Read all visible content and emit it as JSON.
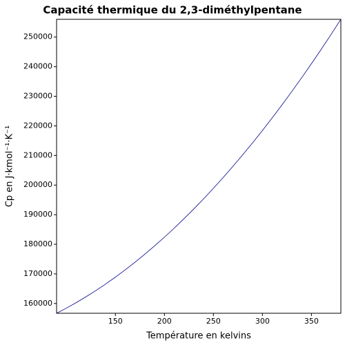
{
  "chart_data": {
    "type": "line",
    "title": "Capacité thermique du 2,3-diméthylpentane",
    "x_label": "Température en kelvins",
    "y_label": "Cp en J·kmol⁻¹·K⁻¹",
    "x": [
      90,
      100,
      110,
      120,
      130,
      140,
      150,
      160,
      170,
      180,
      190,
      200,
      210,
      220,
      230,
      240,
      250,
      260,
      270,
      280,
      290,
      300,
      310,
      320,
      330,
      340,
      350,
      360,
      370,
      380
    ],
    "series": [
      {
        "name": "Cp",
        "color": "#00008b",
        "values": [
          156702,
          158434,
          160287,
          162260,
          164355,
          166570,
          168906,
          171363,
          173941,
          176640,
          179459,
          182400,
          185461,
          188644,
          191947,
          195371,
          198916,
          202582,
          206369,
          210276,
          214305,
          218454,
          222724,
          227115,
          231627,
          236260,
          241014,
          245889,
          250884,
          256000
        ]
      }
    ],
    "xlim": [
      90,
      380
    ],
    "ylim": [
      156700,
      256000
    ],
    "xticks": [
      150,
      200,
      250,
      300,
      350
    ],
    "yticks": [
      160000,
      170000,
      180000,
      190000,
      200000,
      210000,
      220000,
      230000,
      240000,
      250000
    ]
  }
}
